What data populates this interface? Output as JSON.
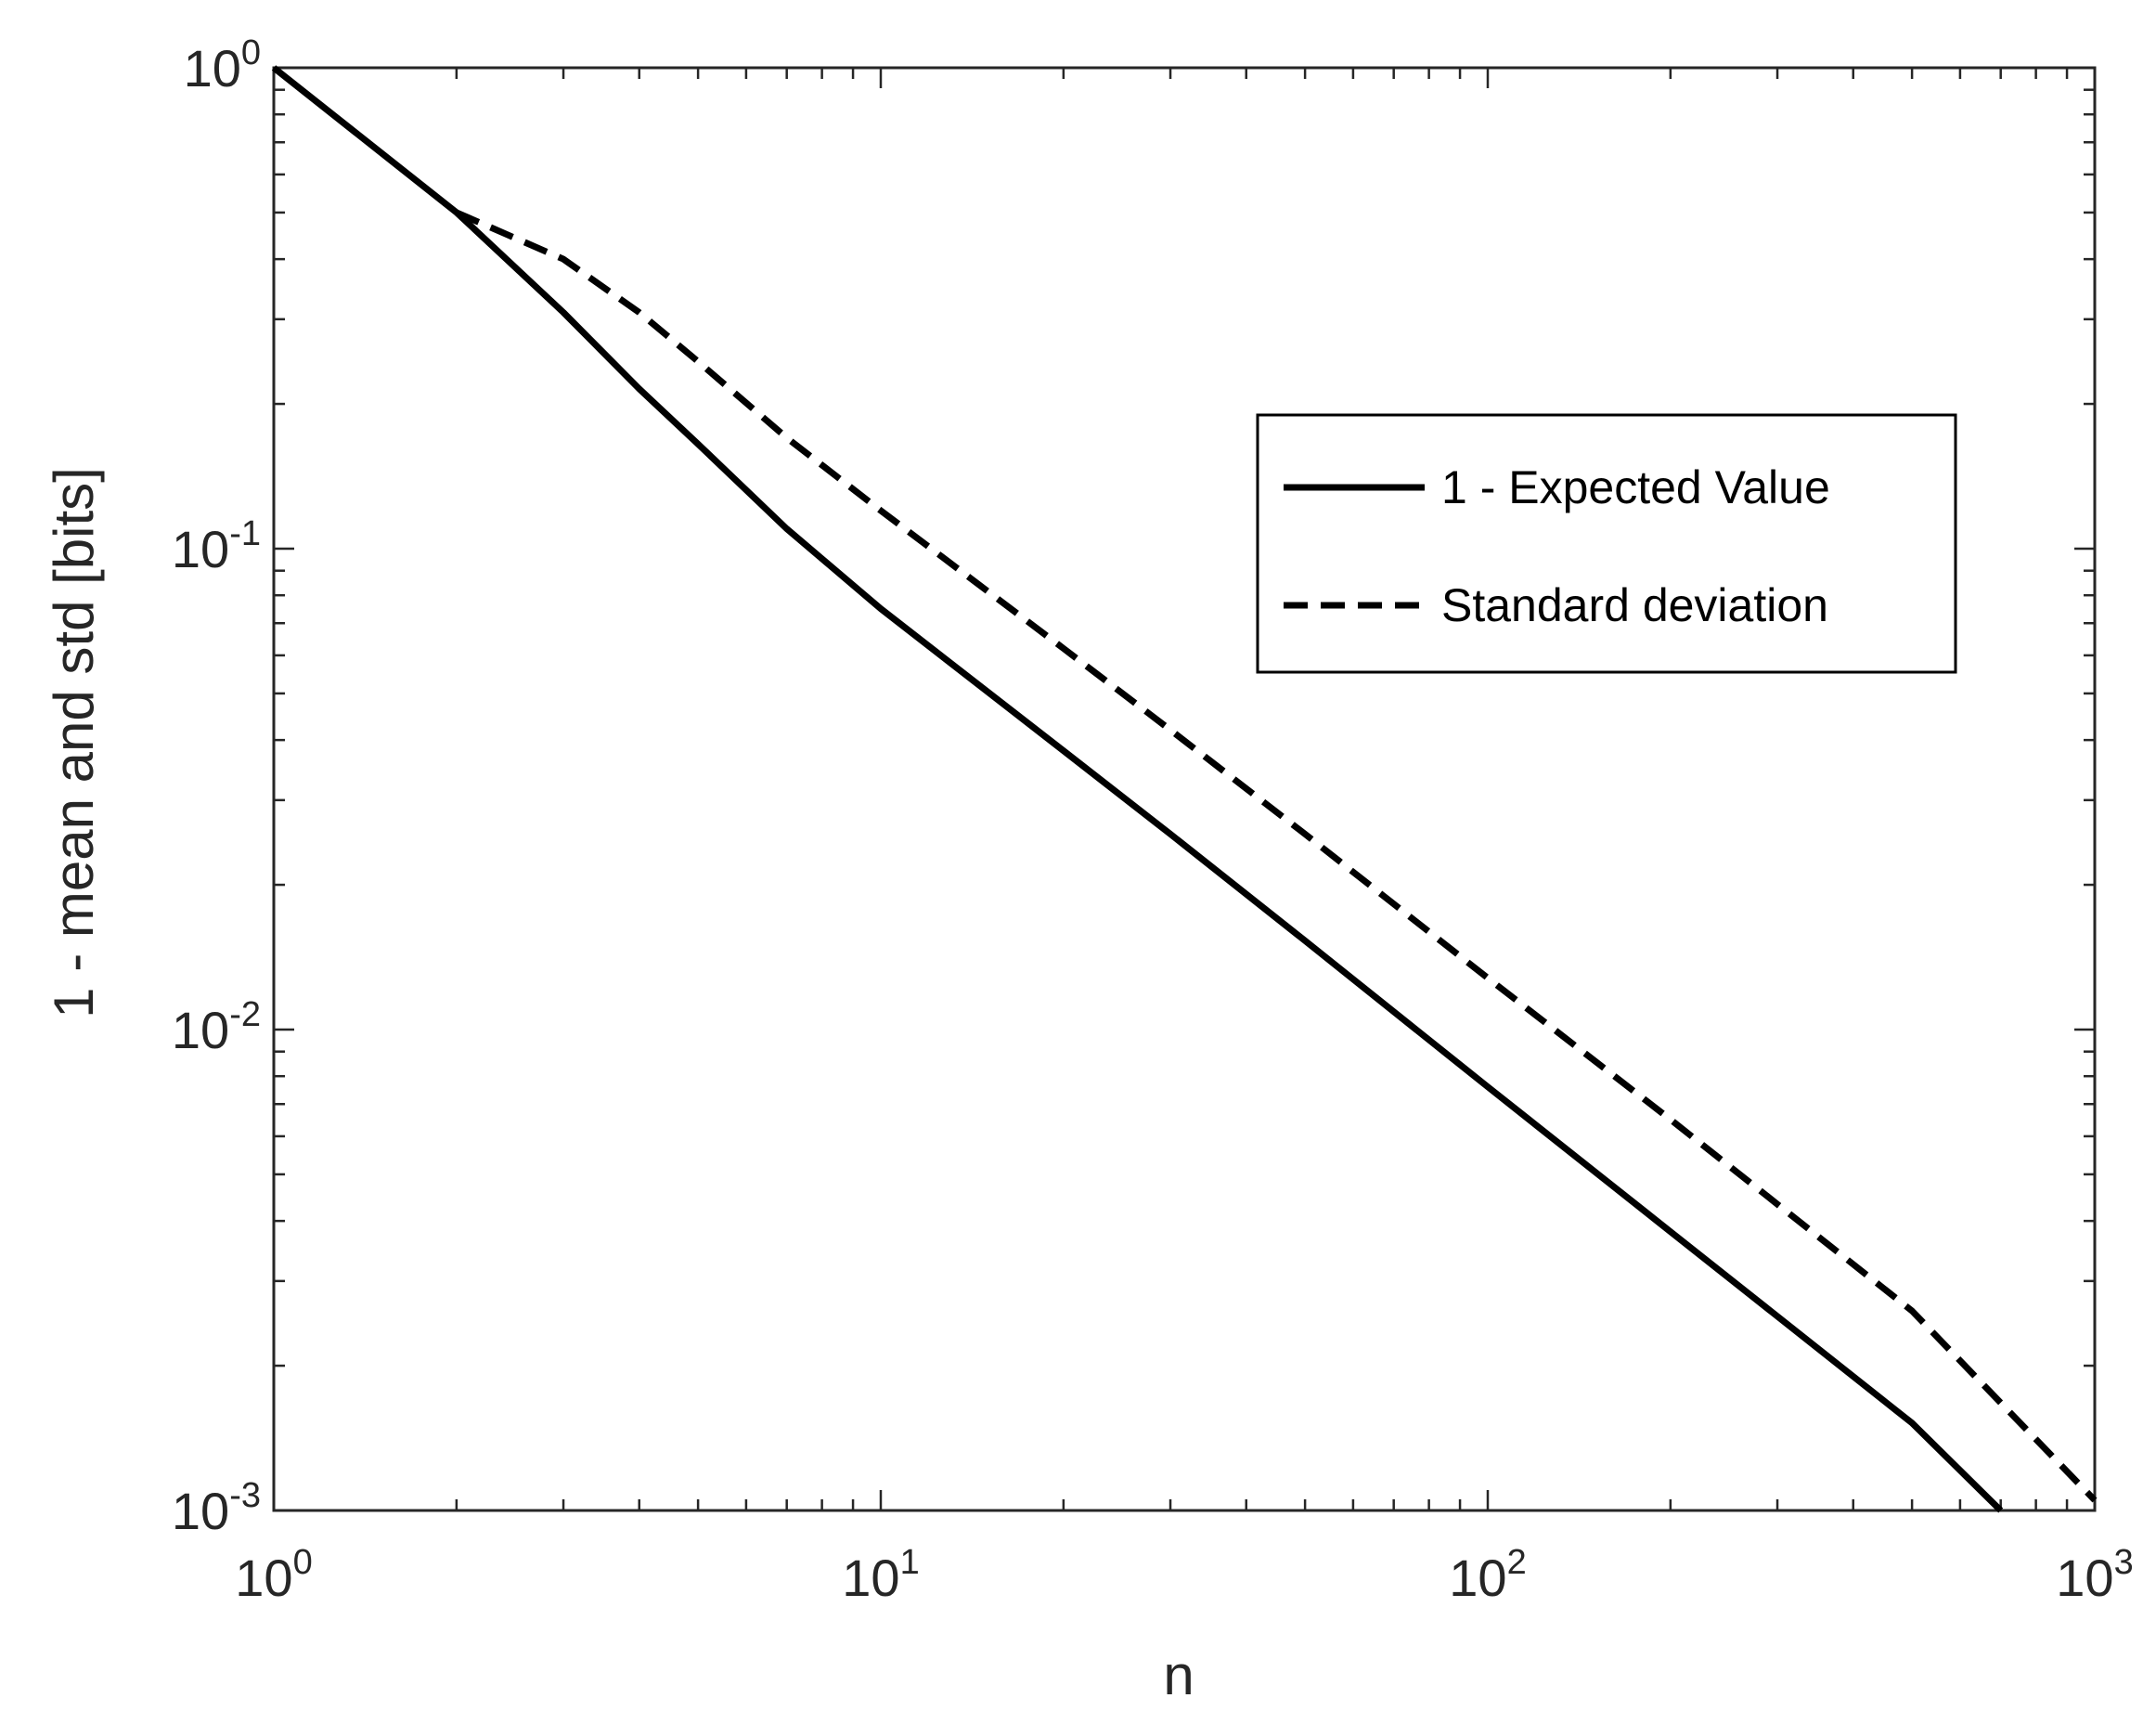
{
  "chart_data": {
    "type": "line",
    "xscale": "log",
    "yscale": "log",
    "xlim": [
      1,
      1000
    ],
    "ylim": [
      0.001,
      1
    ],
    "xlabel": "n",
    "ylabel": "1 - mean and std  [bits]",
    "grid": false,
    "legend_position": "top-right",
    "x_ticks": [
      {
        "base": "10",
        "exp": "0",
        "value": 1
      },
      {
        "base": "10",
        "exp": "1",
        "value": 10
      },
      {
        "base": "10",
        "exp": "2",
        "value": 100
      },
      {
        "base": "10",
        "exp": "3",
        "value": 1000
      }
    ],
    "y_ticks": [
      {
        "base": "10",
        "exp": "0",
        "value": 1
      },
      {
        "base": "10",
        "exp": "-1",
        "value": 0.1
      },
      {
        "base": "10",
        "exp": "-2",
        "value": 0.01
      },
      {
        "base": "10",
        "exp": "-3",
        "value": 0.001
      }
    ],
    "series": [
      {
        "name": "1 - Expected Value",
        "style": "solid",
        "color": "#000000",
        "x": [
          1,
          2,
          3,
          4,
          5,
          7,
          10,
          20,
          30,
          50,
          100,
          200,
          500,
          700
        ],
        "y": [
          1.0,
          0.5,
          0.31,
          0.215,
          0.165,
          0.11,
          0.075,
          0.038,
          0.0255,
          0.0153,
          0.0076,
          0.0038,
          0.00152,
          0.001
        ]
      },
      {
        "name": "Standard deviation",
        "style": "dashed",
        "color": "#000000",
        "x": [
          2,
          3,
          4,
          5,
          7,
          10,
          20,
          30,
          50,
          100,
          200,
          500,
          1000
        ],
        "y": [
          0.5,
          0.4,
          0.31,
          0.245,
          0.17,
          0.12,
          0.062,
          0.042,
          0.0255,
          0.0128,
          0.0065,
          0.0026,
          0.00105
        ]
      }
    ]
  }
}
